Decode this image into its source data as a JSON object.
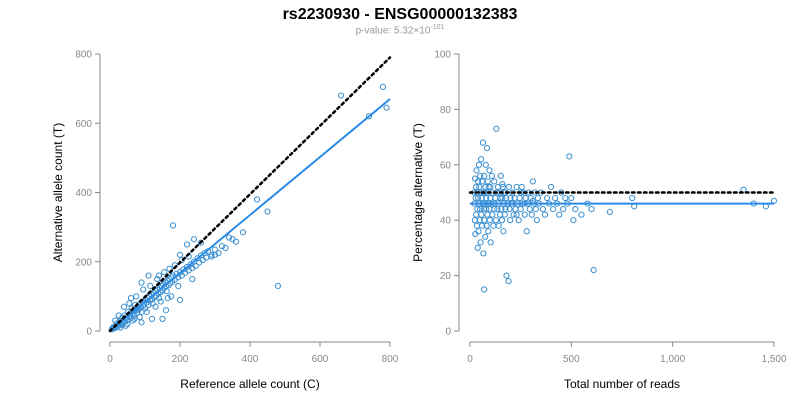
{
  "title": "rs2230930 - ENSG00000132383",
  "subtitle": {
    "prefix": "p-value: 5.32",
    "times": "×",
    "base": "10",
    "exponent": "-101"
  },
  "colors": {
    "points": "#3a8fd0",
    "fit": "#2a8ae6",
    "reference": "#000000",
    "axis": "#888888"
  },
  "chart_data": [
    {
      "type": "scatter",
      "xlabel": "Reference allele count (C)",
      "ylabel": "Alternative allele count (T)",
      "xlim": [
        0,
        800
      ],
      "ylim": [
        0,
        800
      ],
      "xticks": [
        0,
        200,
        400,
        600,
        800
      ],
      "yticks": [
        0,
        200,
        400,
        600,
        800
      ],
      "xtick_labels": [
        "0",
        "200",
        "400",
        "600",
        "800"
      ],
      "ytick_labels": [
        "0",
        "200",
        "400",
        "600",
        "800"
      ],
      "reference_line": {
        "style": "dotted",
        "from": [
          0,
          0
        ],
        "to": [
          800,
          790
        ]
      },
      "fit_line": {
        "style": "solid",
        "from": [
          0,
          0
        ],
        "to": [
          800,
          670
        ]
      },
      "points": [
        [
          5,
          5
        ],
        [
          8,
          6
        ],
        [
          10,
          12
        ],
        [
          12,
          8
        ],
        [
          15,
          14
        ],
        [
          18,
          10
        ],
        [
          20,
          22
        ],
        [
          22,
          18
        ],
        [
          25,
          15
        ],
        [
          28,
          28
        ],
        [
          30,
          24
        ],
        [
          32,
          20
        ],
        [
          35,
          38
        ],
        [
          38,
          30
        ],
        [
          40,
          26
        ],
        [
          42,
          45
        ],
        [
          45,
          35
        ],
        [
          48,
          40
        ],
        [
          50,
          32
        ],
        [
          52,
          55
        ],
        [
          55,
          42
        ],
        [
          58,
          48
        ],
        [
          60,
          38
        ],
        [
          62,
          65
        ],
        [
          65,
          50
        ],
        [
          68,
          58
        ],
        [
          70,
          45
        ],
        [
          72,
          75
        ],
        [
          75,
          60
        ],
        [
          78,
          52
        ],
        [
          80,
          70
        ],
        [
          82,
          62
        ],
        [
          85,
          78
        ],
        [
          88,
          68
        ],
        [
          90,
          55
        ],
        [
          92,
          85
        ],
        [
          95,
          72
        ],
        [
          98,
          80
        ],
        [
          100,
          65
        ],
        [
          102,
          90
        ],
        [
          105,
          82
        ],
        [
          108,
          95
        ],
        [
          110,
          75
        ],
        [
          112,
          100
        ],
        [
          115,
          88
        ],
        [
          118,
          105
        ],
        [
          120,
          92
        ],
        [
          122,
          80
        ],
        [
          125,
          110
        ],
        [
          128,
          98
        ],
        [
          130,
          115
        ],
        [
          132,
          102
        ],
        [
          135,
          120
        ],
        [
          138,
          108
        ],
        [
          140,
          95
        ],
        [
          142,
          125
        ],
        [
          145,
          112
        ],
        [
          148,
          130
        ],
        [
          150,
          118
        ],
        [
          152,
          135
        ],
        [
          155,
          125
        ],
        [
          158,
          140
        ],
        [
          160,
          130
        ],
        [
          162,
          115
        ],
        [
          165,
          145
        ],
        [
          168,
          132
        ],
        [
          170,
          150
        ],
        [
          172,
          138
        ],
        [
          175,
          155
        ],
        [
          178,
          142
        ],
        [
          180,
          160
        ],
        [
          185,
          148
        ],
        [
          190,
          165
        ],
        [
          195,
          155
        ],
        [
          200,
          170
        ],
        [
          205,
          160
        ],
        [
          210,
          178
        ],
        [
          215,
          168
        ],
        [
          220,
          185
        ],
        [
          225,
          175
        ],
        [
          230,
          192
        ],
        [
          235,
          182
        ],
        [
          240,
          200
        ],
        [
          245,
          188
        ],
        [
          250,
          210
        ],
        [
          255,
          198
        ],
        [
          260,
          218
        ],
        [
          265,
          205
        ],
        [
          270,
          225
        ],
        [
          275,
          212
        ],
        [
          280,
          230
        ],
        [
          290,
          220
        ],
        [
          300,
          235
        ],
        [
          310,
          225
        ],
        [
          320,
          245
        ],
        [
          330,
          240
        ],
        [
          350,
          265
        ],
        [
          360,
          258
        ],
        [
          60,
          95
        ],
        [
          40,
          70
        ],
        [
          90,
          140
        ],
        [
          110,
          160
        ],
        [
          140,
          160
        ],
        [
          180,
          305
        ],
        [
          200,
          220
        ],
        [
          220,
          250
        ],
        [
          240,
          265
        ],
        [
          260,
          255
        ],
        [
          290,
          215
        ],
        [
          300,
          220
        ],
        [
          120,
          35
        ],
        [
          150,
          35
        ],
        [
          160,
          60
        ],
        [
          200,
          90
        ],
        [
          90,
          25
        ],
        [
          70,
          35
        ],
        [
          50,
          20
        ],
        [
          30,
          10
        ],
        [
          25,
          45
        ],
        [
          15,
          30
        ],
        [
          340,
          270
        ],
        [
          380,
          285
        ],
        [
          420,
          380
        ],
        [
          450,
          345
        ],
        [
          480,
          130
        ],
        [
          660,
          680
        ],
        [
          740,
          620
        ],
        [
          780,
          705
        ],
        [
          790,
          645
        ],
        [
          45,
          15
        ],
        [
          35,
          18
        ],
        [
          65,
          30
        ],
        [
          85,
          40
        ],
        [
          105,
          55
        ],
        [
          130,
          70
        ],
        [
          175,
          100
        ],
        [
          195,
          130
        ],
        [
          235,
          150
        ],
        [
          165,
          95
        ],
        [
          145,
          85
        ],
        [
          55,
          80
        ],
        [
          75,
          100
        ],
        [
          95,
          120
        ],
        [
          115,
          130
        ],
        [
          135,
          150
        ],
        [
          155,
          170
        ],
        [
          170,
          180
        ],
        [
          185,
          190
        ],
        [
          205,
          205
        ],
        [
          225,
          215
        ]
      ]
    },
    {
      "type": "scatter",
      "xlabel": "Total number of reads",
      "ylabel": "Percentage alternative (T)",
      "xlim": [
        0,
        1500
      ],
      "ylim": [
        0,
        100
      ],
      "xticks": [
        0,
        500,
        1000,
        1500
      ],
      "yticks": [
        0,
        20,
        40,
        60,
        80,
        100
      ],
      "xtick_labels": [
        "0",
        "500",
        "1,000",
        "1,500"
      ],
      "ytick_labels": [
        "0",
        "20",
        "40",
        "60",
        "80",
        "100"
      ],
      "reference_line": {
        "style": "dotted",
        "from": [
          0,
          50
        ],
        "to": [
          1500,
          50
        ]
      },
      "fit_line": {
        "style": "solid",
        "from": [
          0,
          46
        ],
        "to": [
          1500,
          46
        ]
      },
      "points": [
        [
          20,
          50
        ],
        [
          22,
          46
        ],
        [
          24,
          40
        ],
        [
          25,
          55
        ],
        [
          26,
          35
        ],
        [
          28,
          48
        ],
        [
          30,
          52
        ],
        [
          30,
          42
        ],
        [
          32,
          58
        ],
        [
          34,
          38
        ],
        [
          35,
          50
        ],
        [
          36,
          44
        ],
        [
          38,
          30
        ],
        [
          40,
          54
        ],
        [
          40,
          48
        ],
        [
          42,
          36
        ],
        [
          44,
          60
        ],
        [
          45,
          46
        ],
        [
          46,
          52
        ],
        [
          48,
          40
        ],
        [
          50,
          56
        ],
        [
          50,
          44
        ],
        [
          52,
          32
        ],
        [
          54,
          50
        ],
        [
          55,
          62
        ],
        [
          56,
          42
        ],
        [
          58,
          48
        ],
        [
          60,
          54
        ],
        [
          60,
          38
        ],
        [
          62,
          46
        ],
        [
          64,
          68
        ],
        [
          65,
          50
        ],
        [
          66,
          28
        ],
        [
          68,
          44
        ],
        [
          70,
          56
        ],
        [
          70,
          40
        ],
        [
          72,
          50
        ],
        [
          74,
          46
        ],
        [
          75,
          34
        ],
        [
          76,
          52
        ],
        [
          78,
          60
        ],
        [
          80,
          44
        ],
        [
          80,
          48
        ],
        [
          82,
          38
        ],
        [
          84,
          66
        ],
        [
          85,
          50
        ],
        [
          86,
          42
        ],
        [
          88,
          54
        ],
        [
          90,
          46
        ],
        [
          90,
          36
        ],
        [
          92,
          52
        ],
        [
          95,
          44
        ],
        [
          96,
          58
        ],
        [
          98,
          40
        ],
        [
          100,
          48
        ],
        [
          100,
          52
        ],
        [
          102,
          32
        ],
        [
          105,
          46
        ],
        [
          108,
          56
        ],
        [
          110,
          42
        ],
        [
          112,
          50
        ],
        [
          115,
          38
        ],
        [
          118,
          46
        ],
        [
          120,
          54
        ],
        [
          120,
          44
        ],
        [
          125,
          48
        ],
        [
          128,
          40
        ],
        [
          130,
          73
        ],
        [
          132,
          50
        ],
        [
          135,
          44
        ],
        [
          138,
          52
        ],
        [
          140,
          46
        ],
        [
          142,
          38
        ],
        [
          145,
          50
        ],
        [
          148,
          42
        ],
        [
          150,
          48
        ],
        [
          152,
          56
        ],
        [
          155,
          44
        ],
        [
          158,
          40
        ],
        [
          160,
          48
        ],
        [
          162,
          52
        ],
        [
          165,
          36
        ],
        [
          168,
          46
        ],
        [
          170,
          50
        ],
        [
          172,
          42
        ],
        [
          175,
          44
        ],
        [
          178,
          48
        ],
        [
          180,
          20
        ],
        [
          185,
          46
        ],
        [
          190,
          18
        ],
        [
          192,
          52
        ],
        [
          195,
          44
        ],
        [
          198,
          40
        ],
        [
          200,
          48
        ],
        [
          205,
          46
        ],
        [
          210,
          50
        ],
        [
          215,
          42
        ],
        [
          220,
          48
        ],
        [
          225,
          44
        ],
        [
          230,
          52
        ],
        [
          235,
          46
        ],
        [
          240,
          40
        ],
        [
          245,
          48
        ],
        [
          250,
          44
        ],
        [
          255,
          52
        ],
        [
          260,
          46
        ],
        [
          265,
          50
        ],
        [
          270,
          42
        ],
        [
          275,
          48
        ],
        [
          280,
          36
        ],
        [
          285,
          46
        ],
        [
          290,
          50
        ],
        [
          295,
          44
        ],
        [
          300,
          48
        ],
        [
          305,
          42
        ],
        [
          310,
          54
        ],
        [
          315,
          46
        ],
        [
          320,
          50
        ],
        [
          325,
          44
        ],
        [
          330,
          40
        ],
        [
          335,
          48
        ],
        [
          340,
          46
        ],
        [
          350,
          50
        ],
        [
          360,
          44
        ],
        [
          370,
          42
        ],
        [
          380,
          48
        ],
        [
          390,
          46
        ],
        [
          400,
          52
        ],
        [
          410,
          44
        ],
        [
          420,
          48
        ],
        [
          430,
          46
        ],
        [
          440,
          42
        ],
        [
          450,
          50
        ],
        [
          460,
          44
        ],
        [
          470,
          48
        ],
        [
          480,
          46
        ],
        [
          490,
          63
        ],
        [
          500,
          48
        ],
        [
          510,
          40
        ],
        [
          520,
          44
        ],
        [
          550,
          42
        ],
        [
          580,
          46
        ],
        [
          600,
          44
        ],
        [
          610,
          22
        ],
        [
          690,
          43
        ],
        [
          800,
          48
        ],
        [
          810,
          45
        ],
        [
          1350,
          51
        ],
        [
          1400,
          46
        ],
        [
          1460,
          45
        ],
        [
          1500,
          47
        ],
        [
          70,
          15
        ],
        [
          150,
          48
        ],
        [
          160,
          53
        ],
        [
          175,
          50
        ],
        [
          210,
          46
        ],
        [
          230,
          42
        ],
        [
          250,
          50
        ],
        [
          270,
          46
        ],
        [
          310,
          47
        ]
      ]
    }
  ]
}
